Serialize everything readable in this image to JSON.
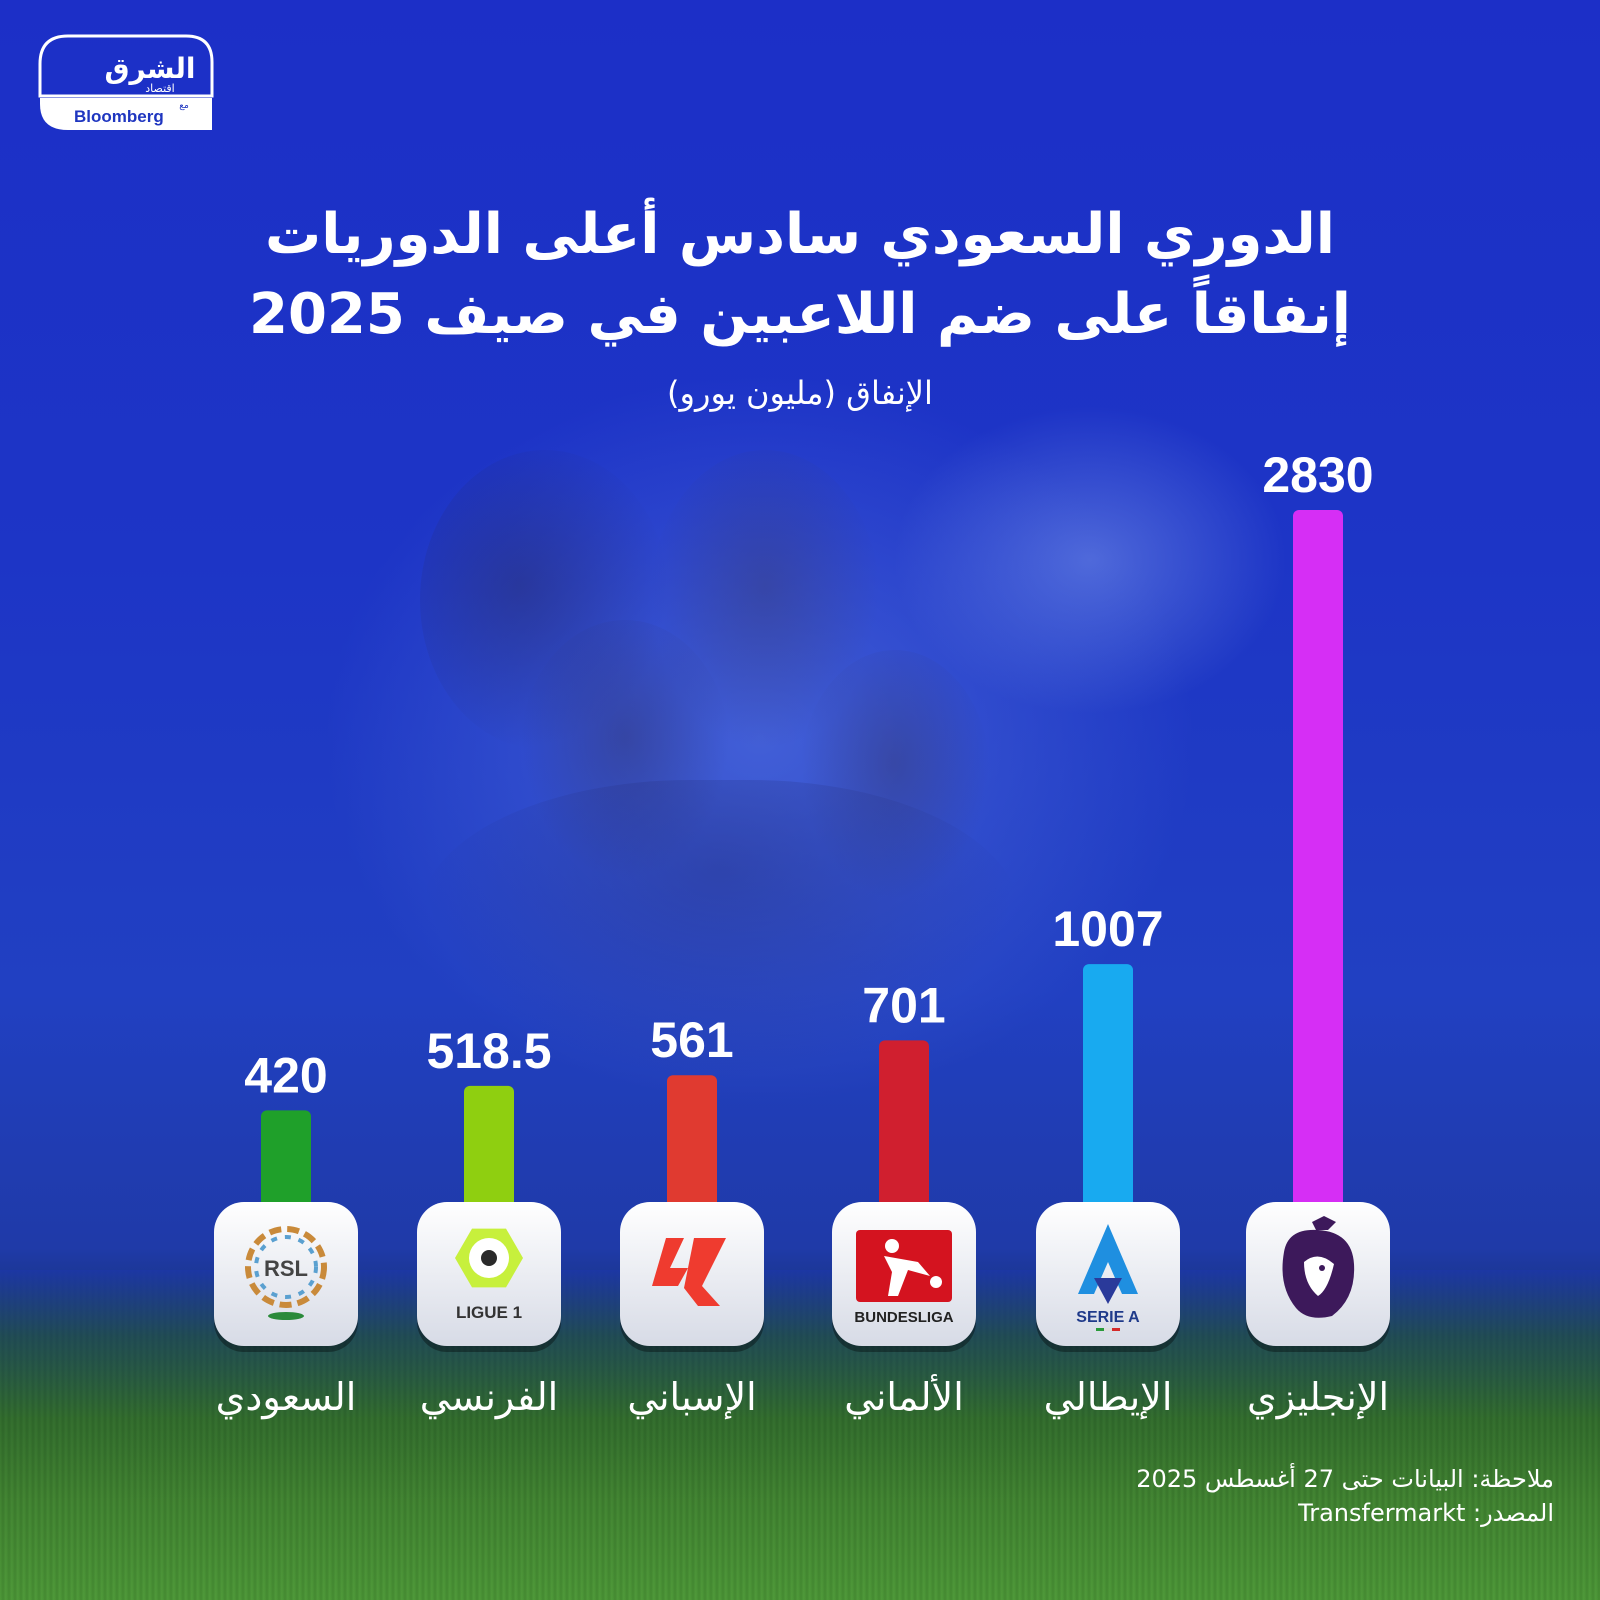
{
  "brand": {
    "name_ar": "الشرق",
    "sub_ar": "اقتصاد",
    "with_ar": "مع",
    "partner": "Bloomberg"
  },
  "header": {
    "title_line1": "الدوري السعودي سادس أعلى الدوريات",
    "title_line2": "إنفاقاً على ضم اللاعبين في صيف 2025",
    "unit": "الإنفاق (مليون يورو)"
  },
  "footer": {
    "note": "ملاحظة: البيانات حتى 27 أغسطس 2025",
    "source": "المصدر: Transfermarkt"
  },
  "chart_data": {
    "type": "bar",
    "title": "الدوري السعودي سادس أعلى الدوريات إنفاقاً على ضم اللاعبين في صيف 2025",
    "ylabel": "الإنفاق (مليون يورو)",
    "xlabel": "",
    "ylim": [
      0,
      2830
    ],
    "grid": false,
    "legend": "none",
    "categories": [
      "السعودي",
      "الفرنسي",
      "الإسباني",
      "الألماني",
      "الإيطالي",
      "الإنجليزي"
    ],
    "values": [
      420,
      518.5,
      561,
      701,
      1007,
      2830
    ],
    "value_labels": [
      "420",
      "518.5",
      "561",
      "701",
      "1007",
      "2830"
    ],
    "logos": [
      {
        "icon": "rsl-logo-icon",
        "text": "RSL"
      },
      {
        "icon": "ligue1-logo-icon",
        "text": "LIGUE 1"
      },
      {
        "icon": "laliga-logo-icon",
        "text": ""
      },
      {
        "icon": "bundesliga-logo-icon",
        "text": "BUNDESLIGA"
      },
      {
        "icon": "serie-a-logo-icon",
        "text": "SERIE A"
      },
      {
        "icon": "premier-league-logo-icon",
        "text": ""
      }
    ],
    "colors": [
      "#1fa02a",
      "#8fcf10",
      "#e03a30",
      "#d01f2f",
      "#18aaf0",
      "#d62ef5"
    ]
  }
}
